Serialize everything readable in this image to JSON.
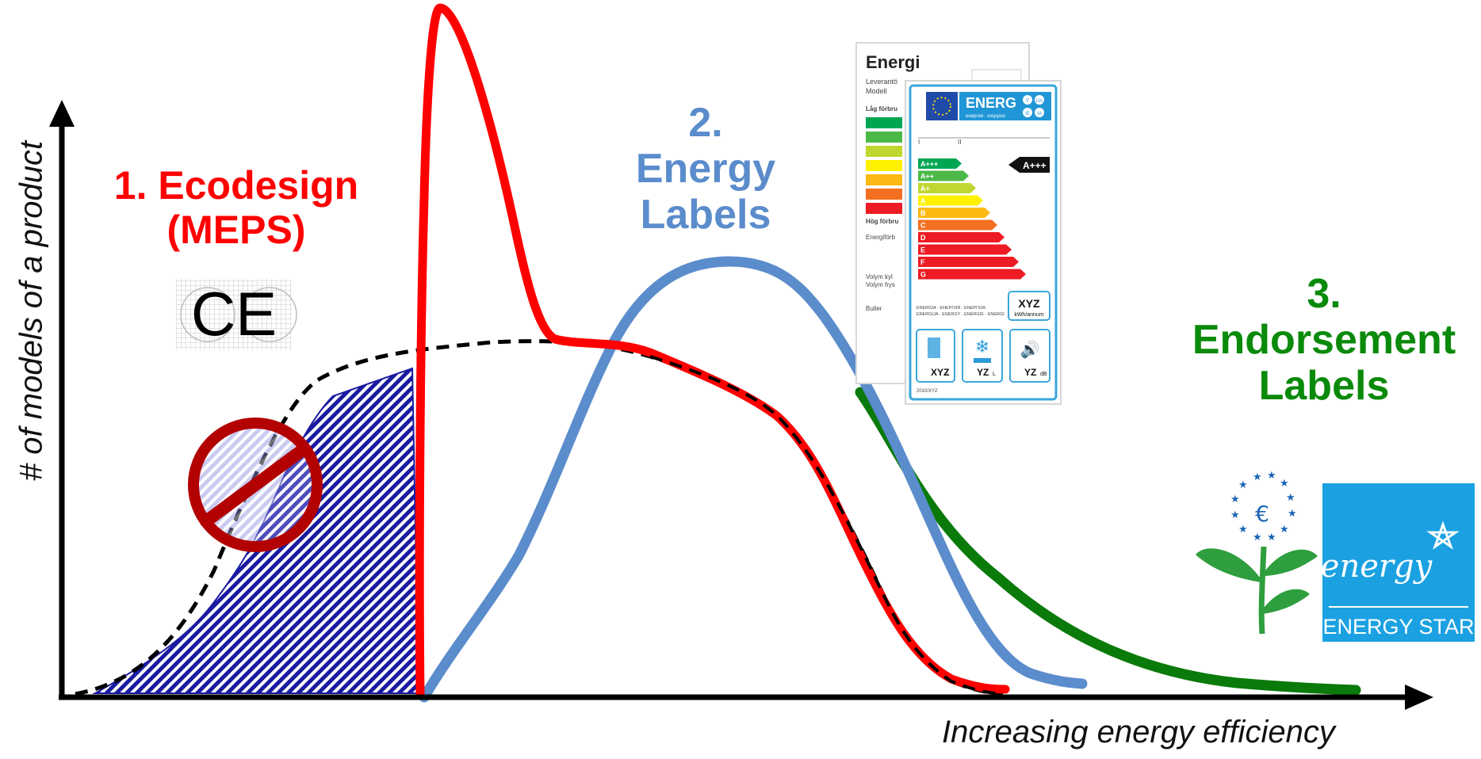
{
  "axes": {
    "y_label": "# of models of a product",
    "x_label": "Increasing energy efficiency"
  },
  "policies": {
    "ecodesign": {
      "line1": "1. Ecodesign",
      "line2": "(MEPS)",
      "color": "#ff0000",
      "icon": "ce-mark-icon"
    },
    "energy_labels": {
      "line1": "2.",
      "line2": "Energy",
      "line3": "Labels",
      "color": "#5b8ccc"
    },
    "endorsement": {
      "line1": "3.",
      "line2": "Endorsement",
      "line3": "Labels",
      "color": "#0a8a0a"
    }
  },
  "ce_mark": "CE",
  "prohibited_icon": "no-entry-icon",
  "energy_label_image": {
    "back_title": "Energi",
    "back_rows": [
      "Leverantö",
      "Modell",
      "Låg förbru",
      "Hög förbru",
      "Energiförb",
      "Volym kyl",
      "Volym frys",
      "Buller"
    ],
    "header": "ENERG",
    "header_sub": "енергия · ενεργεια",
    "header_badges": [
      "Y",
      "IJA",
      "IE",
      "IA"
    ],
    "current_class": "A+++",
    "classes": [
      "A+++",
      "A++",
      "A+",
      "A",
      "B",
      "C",
      "D",
      "E",
      "F",
      "G"
    ],
    "class_colors": [
      "#00a651",
      "#4cb847",
      "#bfd730",
      "#fff200",
      "#fdb913",
      "#f37021",
      "#ed1c24",
      "#ed1c24",
      "#ed1c24",
      "#ed1c24"
    ],
    "annual_value": "XYZ",
    "annual_unit": "kWh/annum",
    "languages": "ENERGIA · ЕНЕРГИЯ · ΕΝΕΡΓΕΙΑ",
    "languages2": "ENERGIJA · ENERGY · ENERGIE · ENERGI",
    "fresh_vol": "XYZ",
    "fresh_unit": "L",
    "frozen_vol": "YZ",
    "frozen_unit": "L",
    "noise": "YZ",
    "noise_unit": "dB",
    "footer": "2010/XYZ"
  },
  "eu_ecolabel": {
    "icon": "eu-flower-icon",
    "letter": "€"
  },
  "energy_star": {
    "script": "energy",
    "text": "ENERGY STAR",
    "color": "#1ba1e2"
  }
}
